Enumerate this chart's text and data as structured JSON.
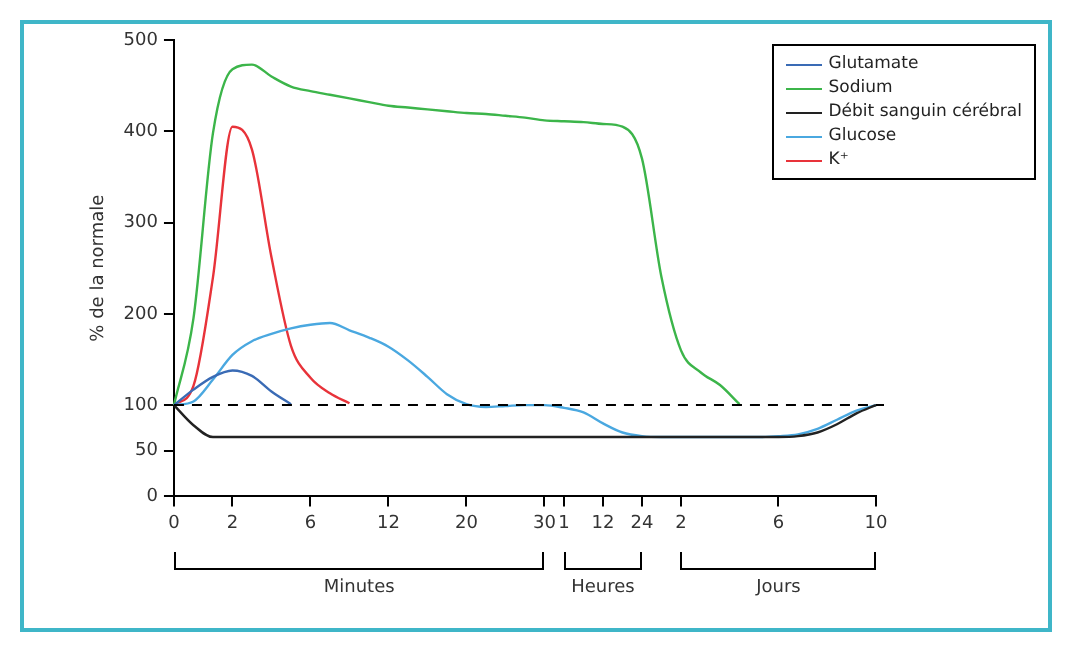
{
  "chart_data": {
    "type": "line",
    "ylabel": "% de la normale",
    "categories": [
      "0",
      null,
      null,
      "2",
      null,
      null,
      null,
      "6",
      null,
      null,
      null,
      "12",
      null,
      null,
      null,
      "20",
      null,
      null,
      null,
      "30",
      "1",
      null,
      "12",
      null,
      "24",
      null,
      "2",
      null,
      null,
      null,
      null,
      "6",
      null,
      null,
      null,
      null,
      "10"
    ],
    "ylim": [
      0,
      500
    ],
    "yticks": [
      0,
      50,
      100,
      200,
      300,
      400,
      500
    ],
    "grid": false,
    "legend": "top right",
    "marker": "none",
    "ref_lines": [
      {
        "axis": "y",
        "value": 100,
        "line_style": "dashed",
        "color": "#000000"
      }
    ],
    "annotations": [
      "Minutes",
      "Heures",
      "Jours"
    ],
    "series": [
      {
        "name": "Glutamate",
        "color": "#3a6bb5",
        "values": [
          100,
          117,
          131,
          138,
          132,
          115,
          101,
          null,
          null,
          null,
          null,
          null,
          null,
          null,
          null,
          null,
          null,
          null,
          null,
          null,
          null,
          null,
          null,
          null,
          null,
          null,
          null,
          null,
          null,
          null,
          null,
          null,
          null,
          null,
          null,
          null,
          null
        ]
      },
      {
        "name": "Sodium",
        "color": "#3cb54a",
        "values": [
          100,
          195,
          398,
          468,
          473,
          460,
          449,
          444,
          440,
          436,
          432,
          428,
          426,
          424,
          422,
          420,
          419,
          417,
          415,
          412,
          411,
          410,
          408,
          405,
          370,
          240,
          160,
          136,
          122,
          101,
          null,
          null,
          null,
          null,
          null,
          null,
          null
        ]
      },
      {
        "name": "Débit sanguin cérébral",
        "color": "#222222",
        "values": [
          100,
          78,
          65,
          65,
          65,
          65,
          65,
          65,
          65,
          65,
          65,
          65,
          65,
          65,
          65,
          65,
          65,
          65,
          65,
          65,
          65,
          65,
          65,
          65,
          65,
          65,
          65,
          65,
          65,
          65,
          65,
          65,
          66,
          70,
          79,
          91,
          100
        ]
      },
      {
        "name": "Glucose",
        "color": "#4aa8e0",
        "values": [
          100,
          104,
          128,
          155,
          170,
          178,
          184,
          188,
          190,
          182,
          174,
          164,
          149,
          131,
          112,
          101,
          98,
          99,
          100,
          100,
          97,
          92,
          80,
          70,
          66,
          65,
          65,
          65,
          65,
          65,
          65,
          66,
          68,
          74,
          84,
          94,
          100
        ]
      },
      {
        "name": "K⁺",
        "color": "#e8333a",
        "values": [
          100,
          121,
          240,
          405,
          380,
          262,
          165,
          130,
          113,
          102,
          null,
          null,
          null,
          null,
          null,
          null,
          null,
          null,
          null,
          null,
          null,
          null,
          null,
          null,
          null,
          null,
          null,
          null,
          null,
          null,
          null,
          null,
          null,
          null,
          null,
          null,
          null
        ]
      }
    ]
  }
}
